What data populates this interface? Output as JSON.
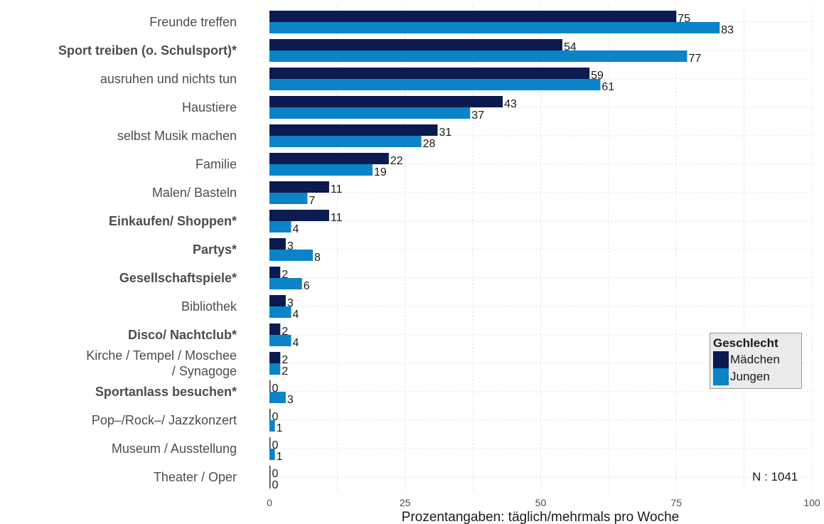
{
  "chart_data": {
    "type": "bar",
    "orientation": "horizontal",
    "categories": [
      "Freunde treffen",
      "Sport treiben (o. Schulsport)*",
      "ausruhen und nichts tun",
      "Haustiere",
      "selbst Musik machen",
      "Familie",
      "Malen/ Basteln",
      "Einkaufen/ Shoppen*",
      "Partys*",
      "Gesellschaftspiele*",
      "Bibliothek",
      "Disco/ Nachtclub*",
      "Kirche / Tempel / Moschee / Synagoge",
      "Sportanlass besuchen*",
      "Pop–/Rock–/ Jazzkonzert",
      "Museum / Ausstellung",
      "Theater / Oper"
    ],
    "category_lines": [
      [
        "Freunde treffen"
      ],
      [
        "Sport treiben (o. Schulsport)*"
      ],
      [
        "ausruhen und nichts tun"
      ],
      [
        "Haustiere"
      ],
      [
        "selbst Musik machen"
      ],
      [
        "Familie"
      ],
      [
        "Malen/ Basteln"
      ],
      [
        "Einkaufen/ Shoppen*"
      ],
      [
        "Partys*"
      ],
      [
        "Gesellschaftspiele*"
      ],
      [
        "Bibliothek"
      ],
      [
        "Disco/ Nachtclub*"
      ],
      [
        "Kirche / Tempel / Moschee",
        "/ Synagoge"
      ],
      [
        "Sportanlass besuchen*"
      ],
      [
        "Pop–/Rock–/ Jazzkonzert"
      ],
      [
        "Museum / Ausstellung"
      ],
      [
        "Theater / Oper"
      ]
    ],
    "bold_categories": [
      false,
      true,
      false,
      false,
      false,
      false,
      false,
      true,
      true,
      true,
      false,
      true,
      false,
      true,
      false,
      false,
      false
    ],
    "series": [
      {
        "name": "Mädchen",
        "color": "#0b1a4f",
        "values": [
          75,
          54,
          59,
          43,
          31,
          22,
          11,
          11,
          3,
          2,
          3,
          2,
          2,
          0,
          0,
          0,
          0
        ]
      },
      {
        "name": "Jungen",
        "color": "#0a84c6",
        "values": [
          83,
          77,
          61,
          37,
          28,
          19,
          7,
          4,
          8,
          6,
          4,
          4,
          2,
          3,
          1,
          1,
          0
        ]
      }
    ],
    "xlabel": "Prozentangaben: täglich/mehrmals pro Woche",
    "xlim": [
      0,
      100
    ],
    "xticks": [
      0,
      25,
      50,
      75,
      100
    ],
    "grid": true,
    "legend": {
      "title": "Geschlecht",
      "placement": "right"
    },
    "annotation": "N : 1041"
  }
}
